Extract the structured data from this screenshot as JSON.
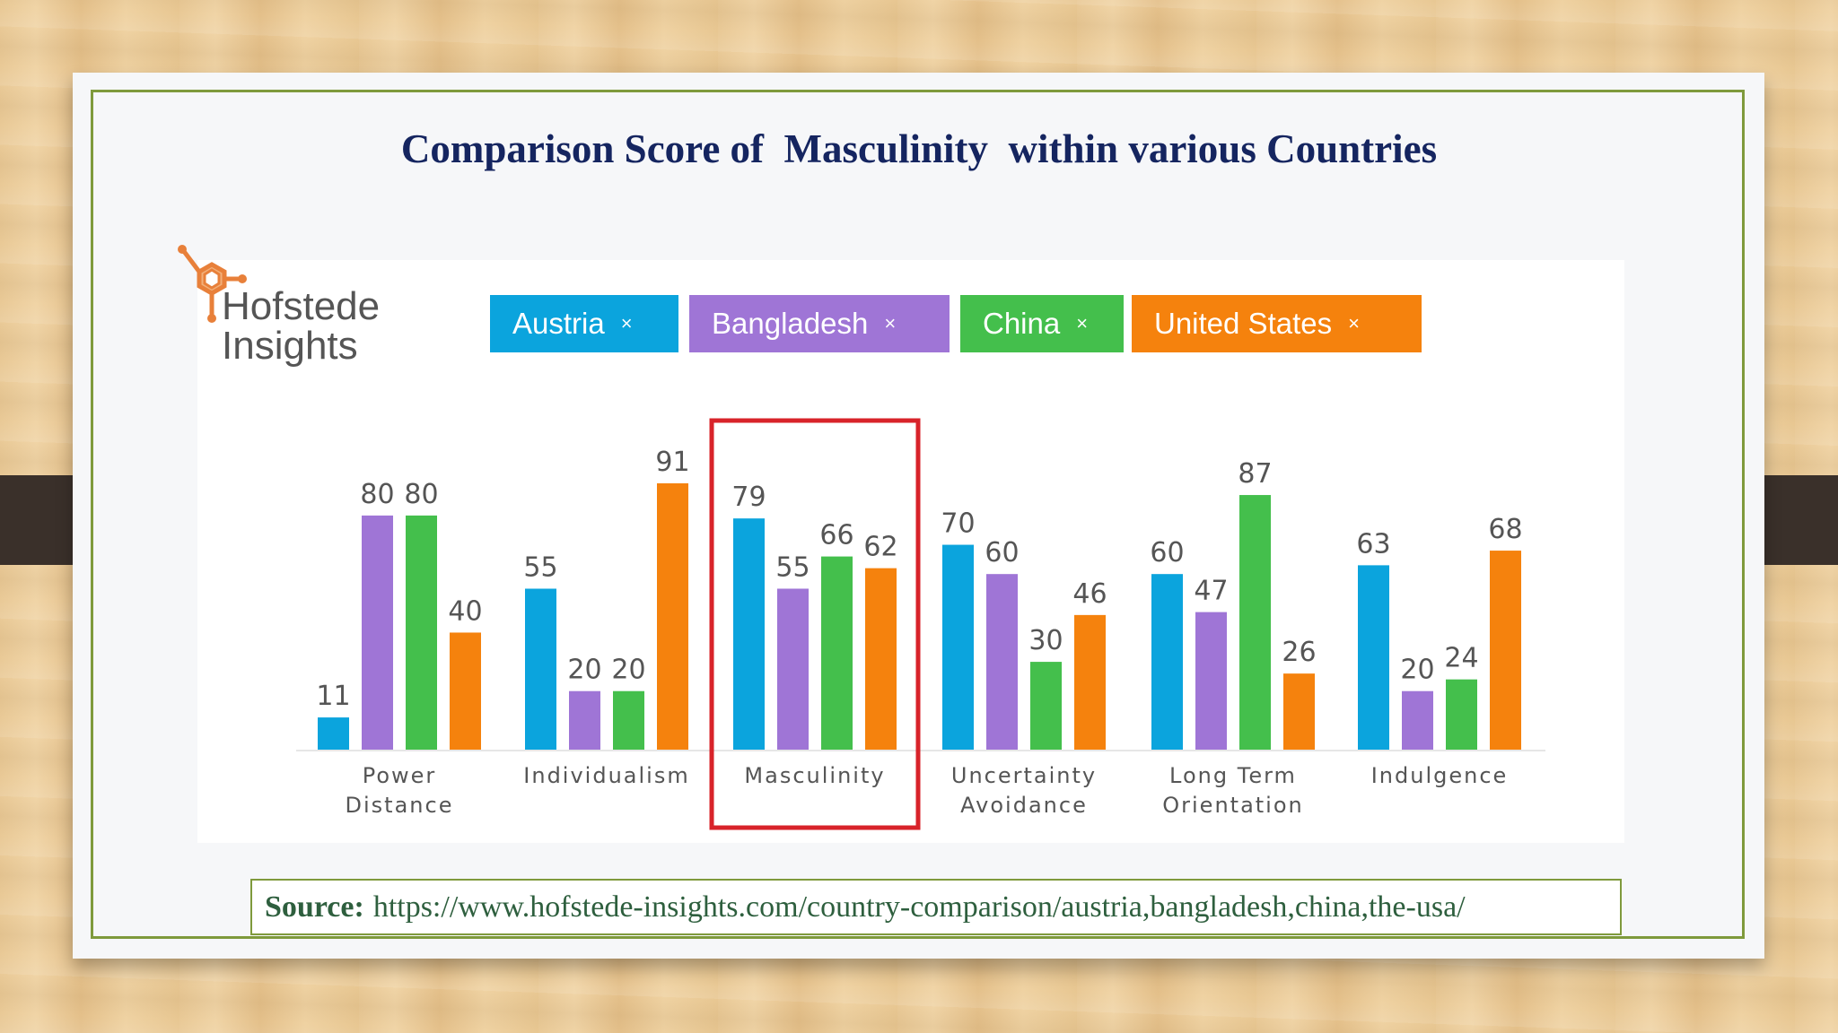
{
  "slide": {
    "title": "Comparison Score of  Masculinity  within various Countries",
    "source_label": "Source:",
    "source_url": "https://www.hofstede-insights.com/country-comparison/austria,bangladesh,china,the-usa/"
  },
  "logo": {
    "line1": "Hofstede",
    "line2": "Insights",
    "icon": "hexagon-molecule-icon",
    "color": "#e8803a"
  },
  "chips": [
    {
      "label": "Austria",
      "close": "×",
      "color": "#0ba4dd"
    },
    {
      "label": "Bangladesh",
      "close": "×",
      "color": "#9f75d6"
    },
    {
      "label": "China",
      "close": "×",
      "color": "#44bf4c"
    },
    {
      "label": "United States",
      "close": "×",
      "color": "#f5820d"
    }
  ],
  "chart_data": {
    "type": "bar",
    "categories": [
      [
        "Power",
        "Distance"
      ],
      [
        "Individualism"
      ],
      [
        "Masculinity"
      ],
      [
        "Uncertainty",
        "Avoidance"
      ],
      [
        "Long Term",
        "Orientation"
      ],
      [
        "Indulgence"
      ]
    ],
    "series": [
      {
        "name": "Austria",
        "color": "#0ba4dd",
        "values": [
          11,
          55,
          79,
          70,
          60,
          63
        ]
      },
      {
        "name": "Bangladesh",
        "color": "#9f75d6",
        "values": [
          80,
          20,
          55,
          60,
          47,
          20
        ]
      },
      {
        "name": "China",
        "color": "#44bf4c",
        "values": [
          80,
          20,
          66,
          30,
          87,
          24
        ]
      },
      {
        "name": "United States",
        "color": "#f5820d",
        "values": [
          40,
          91,
          62,
          46,
          26,
          68
        ]
      }
    ],
    "ylim": [
      0,
      100
    ],
    "grid": false,
    "highlight_category": "Masculinity",
    "highlight_color": "#d8232a"
  }
}
